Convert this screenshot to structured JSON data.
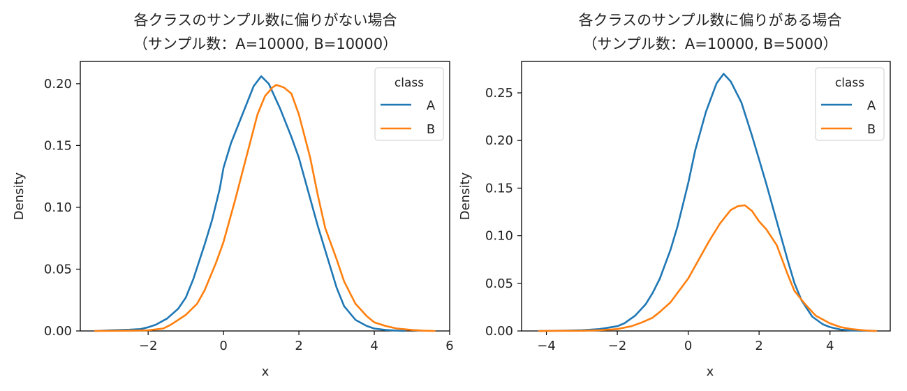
{
  "chart_data": [
    {
      "type": "line",
      "title": "各クラスのサンプル数に偏りがない場合",
      "subtitle": "（サンプル数：A=10000, B=10000）",
      "xlabel": "x",
      "ylabel": "Density",
      "xlim": [
        -3.8,
        6.0
      ],
      "ylim": [
        0.0,
        0.218
      ],
      "xticks": [
        -2,
        0,
        2,
        4,
        6
      ],
      "xtick_labels": [
        "−2",
        "0",
        "2",
        "4",
        "6"
      ],
      "yticks": [
        0.0,
        0.05,
        0.1,
        0.15,
        0.2
      ],
      "ytick_labels": [
        "0.00",
        "0.05",
        "0.10",
        "0.15",
        "0.20"
      ],
      "grid": false,
      "legend": {
        "title": "class",
        "position": "upper-right"
      },
      "series": [
        {
          "name": "A",
          "color": "#1f77b4",
          "x": [
            -3.4,
            -3.0,
            -2.5,
            -2.2,
            -2.0,
            -1.8,
            -1.5,
            -1.2,
            -1.0,
            -0.8,
            -0.5,
            -0.3,
            -0.1,
            0.0,
            0.2,
            0.5,
            0.8,
            1.0,
            1.2,
            1.5,
            1.8,
            2.0,
            2.2,
            2.5,
            2.8,
            3.0,
            3.2,
            3.5,
            3.8,
            4.0,
            4.3,
            4.6,
            4.8
          ],
          "y": [
            0.0,
            0.0005,
            0.001,
            0.0015,
            0.003,
            0.005,
            0.01,
            0.018,
            0.027,
            0.042,
            0.07,
            0.09,
            0.115,
            0.132,
            0.152,
            0.175,
            0.198,
            0.206,
            0.2,
            0.18,
            0.157,
            0.14,
            0.118,
            0.085,
            0.055,
            0.035,
            0.02,
            0.009,
            0.004,
            0.002,
            0.0008,
            0.0003,
            0.0
          ]
        },
        {
          "name": "B",
          "color": "#ff7f0e",
          "x": [
            -3.4,
            -2.5,
            -2.0,
            -1.6,
            -1.4,
            -1.0,
            -0.7,
            -0.5,
            -0.2,
            0.0,
            0.3,
            0.6,
            0.9,
            1.1,
            1.3,
            1.4,
            1.6,
            1.8,
            2.0,
            2.3,
            2.5,
            2.7,
            3.0,
            3.2,
            3.5,
            3.8,
            4.0,
            4.3,
            4.6,
            5.0,
            5.3,
            5.6
          ],
          "y": [
            0.0,
            0.0002,
            0.0005,
            0.002,
            0.005,
            0.013,
            0.022,
            0.033,
            0.055,
            0.072,
            0.105,
            0.14,
            0.175,
            0.19,
            0.197,
            0.199,
            0.197,
            0.192,
            0.175,
            0.14,
            0.11,
            0.083,
            0.058,
            0.04,
            0.022,
            0.012,
            0.007,
            0.004,
            0.002,
            0.0008,
            0.0002,
            0.0
          ]
        }
      ]
    },
    {
      "type": "line",
      "title": "各クラスのサンプル数に偏りがある場合",
      "subtitle": "（サンプル数：A=10000, B=5000）",
      "xlabel": "x",
      "ylabel": "Density",
      "xlim": [
        -4.7,
        5.7
      ],
      "ylim": [
        0.0,
        0.283
      ],
      "xticks": [
        -4,
        -2,
        0,
        2,
        4
      ],
      "xtick_labels": [
        "−4",
        "−2",
        "0",
        "2",
        "4"
      ],
      "yticks": [
        0.0,
        0.05,
        0.1,
        0.15,
        0.2,
        0.25
      ],
      "ytick_labels": [
        "0.00",
        "0.05",
        "0.10",
        "0.15",
        "0.20",
        "0.25"
      ],
      "grid": false,
      "legend": {
        "title": "class",
        "position": "upper-right"
      },
      "series": [
        {
          "name": "A",
          "color": "#1f77b4",
          "x": [
            -4.2,
            -3.5,
            -3.0,
            -2.5,
            -2.0,
            -1.8,
            -1.5,
            -1.2,
            -1.0,
            -0.8,
            -0.5,
            -0.3,
            0.0,
            0.2,
            0.5,
            0.8,
            1.0,
            1.2,
            1.5,
            1.8,
            2.0,
            2.2,
            2.5,
            2.8,
            3.0,
            3.2,
            3.5,
            3.8,
            4.0,
            4.3,
            4.6,
            5.0,
            5.3
          ],
          "y": [
            0.0,
            0.0003,
            0.0008,
            0.002,
            0.005,
            0.008,
            0.016,
            0.028,
            0.04,
            0.055,
            0.085,
            0.11,
            0.155,
            0.19,
            0.23,
            0.26,
            0.27,
            0.262,
            0.24,
            0.205,
            0.18,
            0.155,
            0.115,
            0.075,
            0.05,
            0.032,
            0.015,
            0.007,
            0.004,
            0.0015,
            0.0005,
            0.0002,
            0.0
          ]
        },
        {
          "name": "B",
          "color": "#ff7f0e",
          "x": [
            -4.2,
            -3.0,
            -2.5,
            -2.0,
            -1.6,
            -1.3,
            -1.0,
            -0.8,
            -0.5,
            -0.3,
            0.0,
            0.3,
            0.6,
            0.9,
            1.2,
            1.4,
            1.6,
            1.8,
            2.0,
            2.2,
            2.5,
            2.8,
            3.0,
            3.3,
            3.6,
            4.0,
            4.3,
            4.6,
            5.0,
            5.3
          ],
          "y": [
            0.0,
            0.0002,
            0.0008,
            0.002,
            0.005,
            0.009,
            0.014,
            0.02,
            0.03,
            0.04,
            0.055,
            0.075,
            0.095,
            0.113,
            0.127,
            0.131,
            0.132,
            0.126,
            0.115,
            0.107,
            0.09,
            0.06,
            0.042,
            0.028,
            0.016,
            0.008,
            0.004,
            0.002,
            0.0005,
            0.0
          ]
        }
      ]
    }
  ]
}
